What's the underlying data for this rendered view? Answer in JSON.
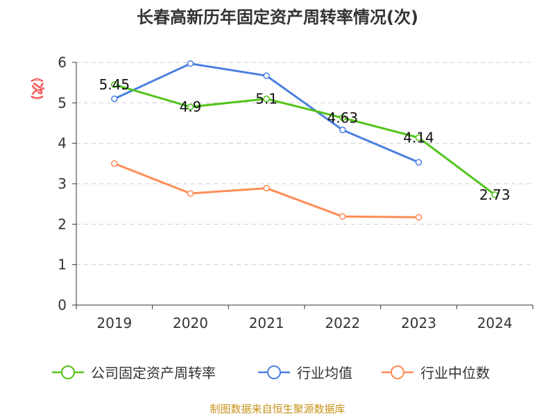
{
  "chart_data": {
    "type": "line",
    "title": "长春高新历年固定资产周转率情况(次)",
    "ylabel": "(次)",
    "categories": [
      "2019",
      "2020",
      "2021",
      "2022",
      "2023",
      "2024"
    ],
    "ylim": [
      0,
      6
    ],
    "yticks": [
      "0",
      "1",
      "2",
      "3",
      "4",
      "5",
      "6"
    ],
    "grid": true,
    "legend_position": "bottom",
    "series": [
      {
        "name": "公司固定资产周转率",
        "color": "#52c41a",
        "values": [
          5.45,
          4.9,
          5.1,
          4.63,
          4.14,
          2.73
        ],
        "labels": [
          "5.45",
          "4.9",
          "5.1",
          "4.63",
          "4.14",
          "2.73"
        ]
      },
      {
        "name": "行业均值",
        "color": "#4a7fe0",
        "values": [
          5.1,
          5.97,
          5.67,
          4.33,
          3.53,
          null
        ]
      },
      {
        "name": "行业中位数",
        "color": "#ff8c55",
        "values": [
          3.5,
          2.76,
          2.89,
          2.19,
          2.17,
          null
        ]
      }
    ]
  },
  "source": "制图数据来自恒生聚源数据库"
}
